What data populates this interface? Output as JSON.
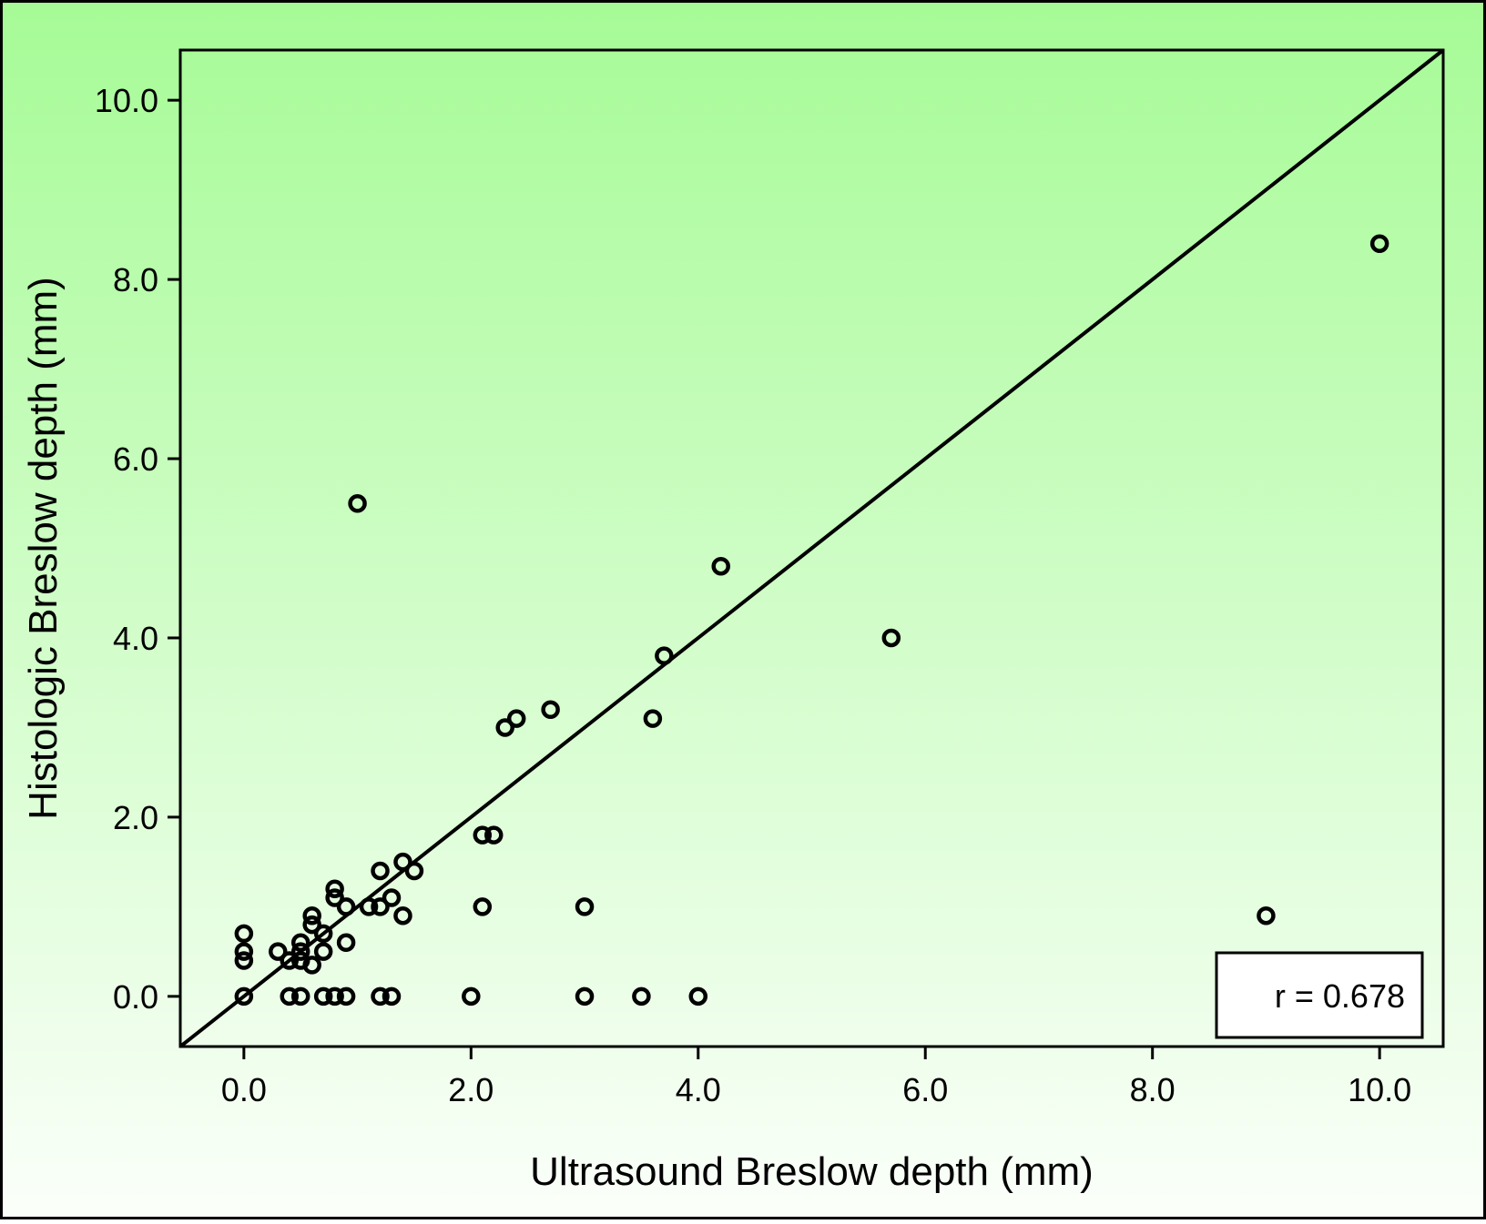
{
  "chart_data": {
    "type": "scatter",
    "title": "",
    "xlabel": "Ultrasound Breslow depth (mm)",
    "ylabel": "Histologic Breslow depth (mm)",
    "xlim": [
      -0.56,
      10.56
    ],
    "ylim": [
      -0.56,
      10.56
    ],
    "xticks": [
      0,
      2,
      4,
      6,
      8,
      10
    ],
    "yticks": [
      0,
      2,
      4,
      6,
      8,
      10
    ],
    "xtick_labels": [
      "0.0",
      "2.0",
      "4.0",
      "6.0",
      "8.0",
      "10.0"
    ],
    "ytick_labels": [
      "0.0",
      "2.0",
      "4.0",
      "6.0",
      "8.0",
      "10.0"
    ],
    "grid": false,
    "reference_line": {
      "type": "identity",
      "x": [
        -0.56,
        10.56
      ],
      "y": [
        -0.56,
        10.56
      ]
    },
    "annotation": {
      "text": "r = 0.678",
      "position": "bottom-right"
    },
    "colors": {
      "background_top": "#a6fb96",
      "background_bottom": "#fbfffa",
      "marker": "#000000",
      "line": "#000000"
    },
    "series": [
      {
        "marker": "open-circle",
        "points": [
          {
            "x": 0.0,
            "y": 0.0
          },
          {
            "x": 0.0,
            "y": 0.4
          },
          {
            "x": 0.0,
            "y": 0.5
          },
          {
            "x": 0.0,
            "y": 0.7
          },
          {
            "x": 0.3,
            "y": 0.5
          },
          {
            "x": 0.4,
            "y": 0.0
          },
          {
            "x": 0.4,
            "y": 0.4
          },
          {
            "x": 0.5,
            "y": 0.0
          },
          {
            "x": 0.5,
            "y": 0.4
          },
          {
            "x": 0.5,
            "y": 0.5
          },
          {
            "x": 0.5,
            "y": 0.6
          },
          {
            "x": 0.6,
            "y": 0.35
          },
          {
            "x": 0.6,
            "y": 0.8
          },
          {
            "x": 0.6,
            "y": 0.9
          },
          {
            "x": 0.7,
            "y": 0.0
          },
          {
            "x": 0.7,
            "y": 0.5
          },
          {
            "x": 0.7,
            "y": 0.7
          },
          {
            "x": 0.8,
            "y": 0.0
          },
          {
            "x": 0.8,
            "y": 1.1
          },
          {
            "x": 0.8,
            "y": 1.2
          },
          {
            "x": 0.9,
            "y": 0.0
          },
          {
            "x": 0.9,
            "y": 0.6
          },
          {
            "x": 0.9,
            "y": 1.0
          },
          {
            "x": 1.0,
            "y": 5.5
          },
          {
            "x": 1.1,
            "y": 1.0
          },
          {
            "x": 1.2,
            "y": 0.0
          },
          {
            "x": 1.2,
            "y": 1.0
          },
          {
            "x": 1.2,
            "y": 1.4
          },
          {
            "x": 1.3,
            "y": 0.0
          },
          {
            "x": 1.3,
            "y": 1.1
          },
          {
            "x": 1.4,
            "y": 0.9
          },
          {
            "x": 1.4,
            "y": 1.5
          },
          {
            "x": 1.5,
            "y": 1.4
          },
          {
            "x": 2.0,
            "y": 0.0
          },
          {
            "x": 2.1,
            "y": 1.0
          },
          {
            "x": 2.1,
            "y": 1.8
          },
          {
            "x": 2.2,
            "y": 1.8
          },
          {
            "x": 2.3,
            "y": 3.0
          },
          {
            "x": 2.4,
            "y": 3.1
          },
          {
            "x": 2.7,
            "y": 3.2
          },
          {
            "x": 3.0,
            "y": 0.0
          },
          {
            "x": 3.0,
            "y": 1.0
          },
          {
            "x": 3.5,
            "y": 0.0
          },
          {
            "x": 3.6,
            "y": 3.1
          },
          {
            "x": 3.7,
            "y": 3.8
          },
          {
            "x": 4.0,
            "y": 0.0
          },
          {
            "x": 4.2,
            "y": 4.8
          },
          {
            "x": 5.7,
            "y": 4.0
          },
          {
            "x": 9.0,
            "y": 0.9
          },
          {
            "x": 10.0,
            "y": 8.4
          }
        ]
      }
    ]
  }
}
